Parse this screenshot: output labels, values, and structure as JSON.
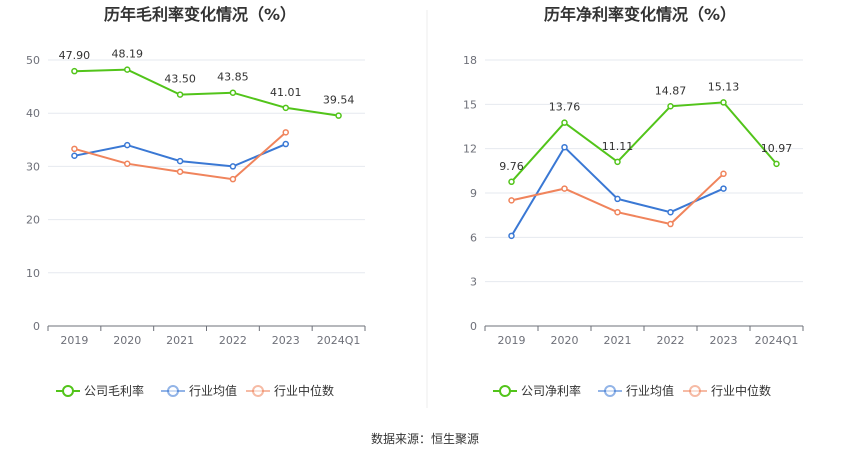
{
  "footer": "数据来源：恒生聚源",
  "colors": {
    "company": "#52c41a",
    "industry_avg": "#3a78d4",
    "industry_median": "#f0845c",
    "grid": "#e6e9ef",
    "axis": "#6e7079"
  },
  "legend_icons": [
    "line-circle-icon",
    "line-circle-icon",
    "line-circle-icon"
  ],
  "chart_data": [
    {
      "type": "line",
      "title": "历年毛利率变化情况（%）",
      "categories": [
        "2019",
        "2020",
        "2021",
        "2022",
        "2023",
        "2024Q1"
      ],
      "y_ticks": [
        0,
        10,
        20,
        30,
        40,
        50
      ],
      "ylim": [
        0,
        50
      ],
      "grid": true,
      "legend_position": "bottom",
      "series": [
        {
          "name": "公司毛利率",
          "key": "company",
          "values": [
            47.9,
            48.19,
            43.5,
            43.85,
            41.01,
            39.54
          ],
          "labels": [
            "47.90",
            "48.19",
            "43.50",
            "43.85",
            "41.01",
            "39.54"
          ]
        },
        {
          "name": "行业均值",
          "key": "industry_avg",
          "values": [
            32.0,
            34.0,
            31.0,
            30.0,
            34.2,
            null
          ]
        },
        {
          "name": "行业中位数",
          "key": "industry_median",
          "values": [
            33.3,
            30.5,
            29.0,
            27.6,
            36.4,
            null
          ]
        }
      ]
    },
    {
      "type": "line",
      "title": "历年净利率变化情况（%）",
      "categories": [
        "2019",
        "2020",
        "2021",
        "2022",
        "2023",
        "2024Q1"
      ],
      "y_ticks": [
        0,
        3,
        6,
        9,
        12,
        15,
        18
      ],
      "ylim": [
        0,
        18
      ],
      "grid": true,
      "legend_position": "bottom",
      "series": [
        {
          "name": "公司净利率",
          "key": "company",
          "values": [
            9.76,
            13.76,
            11.11,
            14.87,
            15.13,
            10.97
          ],
          "labels": [
            "9.76",
            "13.76",
            "11.11",
            "14.87",
            "15.13",
            "10.97"
          ]
        },
        {
          "name": "行业均值",
          "key": "industry_avg",
          "values": [
            6.1,
            12.1,
            8.6,
            7.7,
            9.3,
            null
          ]
        },
        {
          "name": "行业中位数",
          "key": "industry_median",
          "values": [
            8.5,
            9.3,
            7.7,
            6.9,
            10.3,
            null
          ]
        }
      ]
    }
  ]
}
